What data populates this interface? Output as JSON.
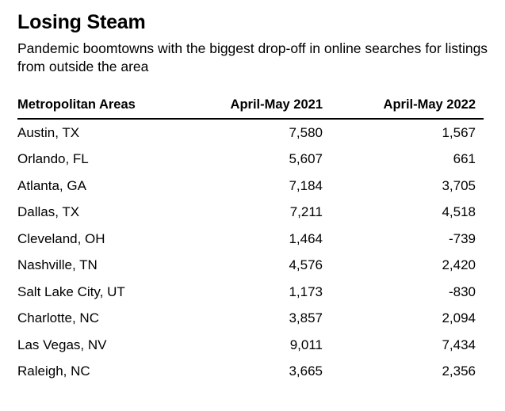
{
  "title": "Losing Steam",
  "subtitle": "Pandemic boomtowns with the biggest drop-off in online searches for listings from outside the area",
  "chart_data": {
    "type": "table",
    "title": "Losing Steam",
    "subtitle": "Pandemic boomtowns with the biggest drop-off in online searches for listings from outside the area",
    "columns": [
      "Metropolitan Areas",
      "April-May 2021",
      "April-May 2022"
    ],
    "rows": [
      {
        "area": "Austin, TX",
        "y2021": "7,580",
        "y2022": "1,567"
      },
      {
        "area": "Orlando, FL",
        "y2021": "5,607",
        "y2022": "661"
      },
      {
        "area": "Atlanta, GA",
        "y2021": "7,184",
        "y2022": "3,705"
      },
      {
        "area": "Dallas, TX",
        "y2021": "7,211",
        "y2022": "4,518"
      },
      {
        "area": "Cleveland, OH",
        "y2021": "1,464",
        "y2022": "-739"
      },
      {
        "area": "Nashville, TN",
        "y2021": "4,576",
        "y2022": "2,420"
      },
      {
        "area": "Salt Lake City, UT",
        "y2021": "1,173",
        "y2022": "-830"
      },
      {
        "area": "Charlotte, NC",
        "y2021": "3,857",
        "y2022": "2,094"
      },
      {
        "area": "Las Vegas, NV",
        "y2021": "9,011",
        "y2022": "7,434"
      },
      {
        "area": "Raleigh, NC",
        "y2021": "3,665",
        "y2022": "2,356"
      }
    ]
  }
}
